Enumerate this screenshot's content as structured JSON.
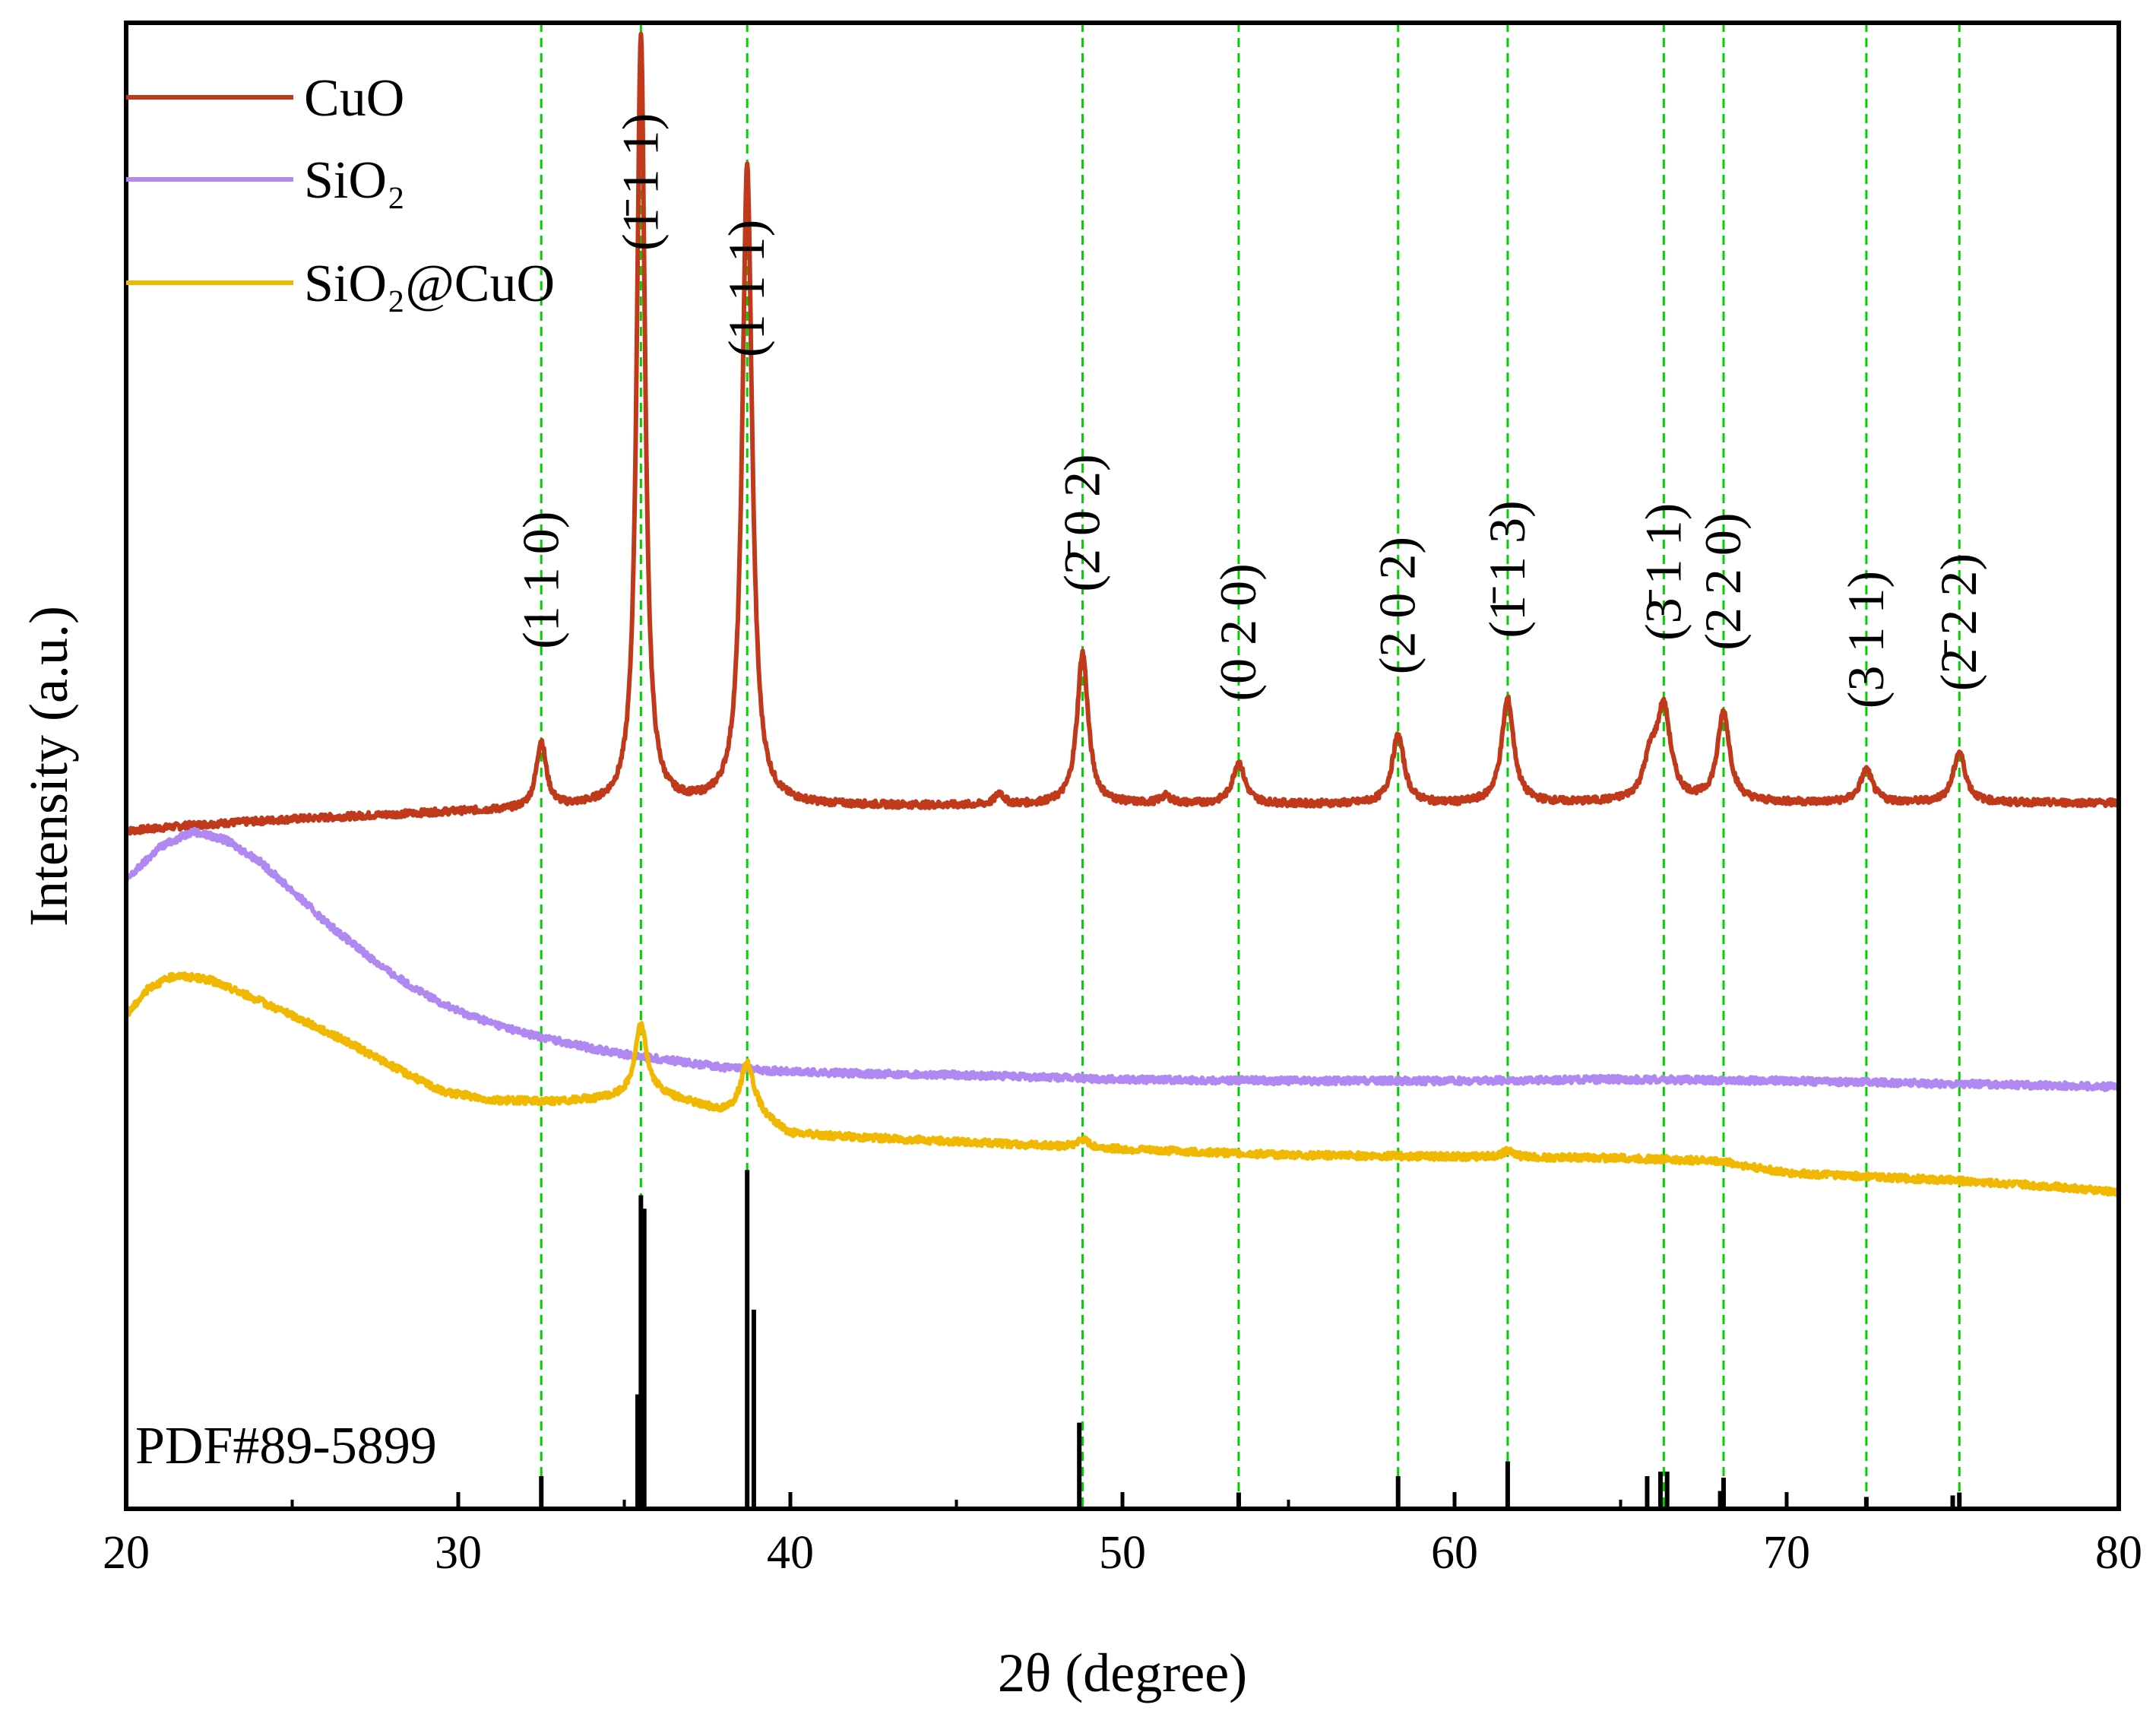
{
  "chart_data": {
    "type": "line",
    "title": "",
    "xlabel": "2θ  (degree)",
    "ylabel": "Intensity (a.u.)",
    "xlim": [
      20,
      80
    ],
    "ylim": [
      0,
      100
    ],
    "x_ticks": [
      20,
      30,
      40,
      50,
      60,
      70,
      80
    ],
    "x_tick_labels": [
      "20",
      "30",
      "40",
      "50",
      "60",
      "70",
      "80"
    ],
    "y_ticks_shown": false,
    "grid": false,
    "legend_position": "top-left",
    "legend": [
      {
        "name": "CuO",
        "color": "#c0391b"
      },
      {
        "name": "SiO₂",
        "color": "#b088f2"
      },
      {
        "name": "SiO₂@CuO",
        "color": "#f0b800"
      }
    ],
    "series": [
      {
        "name": "CuO",
        "color": "#c0391b",
        "baseline": [
          [
            20,
            45.6
          ],
          [
            22,
            46.0
          ],
          [
            25,
            46.4
          ],
          [
            30,
            46.9
          ],
          [
            32,
            47.0
          ],
          [
            34,
            47.2
          ],
          [
            37,
            47.3
          ],
          [
            40,
            47.3
          ],
          [
            45,
            47.3
          ],
          [
            50,
            47.4
          ],
          [
            55,
            47.4
          ],
          [
            60,
            47.4
          ],
          [
            65,
            47.5
          ],
          [
            70,
            47.5
          ],
          [
            75,
            47.5
          ],
          [
            80,
            47.5
          ]
        ],
        "peaks": [
          {
            "x": 32.5,
            "height": 4.5,
            "width": 0.18
          },
          {
            "x": 35.5,
            "height": 52.0,
            "width": 0.15
          },
          {
            "x": 38.7,
            "height": 43.0,
            "width": 0.18
          },
          {
            "x": 46.3,
            "height": 0.8,
            "width": 0.15
          },
          {
            "x": 48.8,
            "height": 10.2,
            "width": 0.2
          },
          {
            "x": 51.3,
            "height": 0.5,
            "width": 0.2
          },
          {
            "x": 53.5,
            "height": 2.8,
            "width": 0.22
          },
          {
            "x": 58.3,
            "height": 4.6,
            "width": 0.22
          },
          {
            "x": 61.6,
            "height": 7.0,
            "width": 0.22
          },
          {
            "x": 65.9,
            "height": 2.5,
            "width": 0.25
          },
          {
            "x": 66.3,
            "height": 6.0,
            "width": 0.25
          },
          {
            "x": 68.1,
            "height": 6.0,
            "width": 0.22
          },
          {
            "x": 72.4,
            "height": 2.2,
            "width": 0.22
          },
          {
            "x": 75.2,
            "height": 3.4,
            "width": 0.22
          }
        ]
      },
      {
        "name": "SiO₂",
        "color": "#b088f2",
        "baseline": [
          [
            20,
            42.3
          ],
          [
            21,
            44.5
          ],
          [
            22,
            45.6
          ],
          [
            23,
            45.0
          ],
          [
            24,
            43.6
          ],
          [
            25,
            41.6
          ],
          [
            26,
            39.5
          ],
          [
            27,
            37.7
          ],
          [
            28,
            36.0
          ],
          [
            29,
            34.6
          ],
          [
            30,
            33.5
          ],
          [
            31,
            32.7
          ],
          [
            32,
            32.0
          ],
          [
            33,
            31.5
          ],
          [
            34,
            31.0
          ],
          [
            35,
            30.6
          ],
          [
            36,
            30.3
          ],
          [
            37,
            30.0
          ],
          [
            38,
            29.7
          ],
          [
            40,
            29.4
          ],
          [
            42,
            29.3
          ],
          [
            45,
            29.2
          ],
          [
            50,
            28.9
          ],
          [
            55,
            28.8
          ],
          [
            60,
            28.8
          ],
          [
            65,
            28.9
          ],
          [
            70,
            28.8
          ],
          [
            75,
            28.6
          ],
          [
            80,
            28.4
          ]
        ],
        "peaks": []
      },
      {
        "name": "SiO₂@CuO",
        "color": "#f0b800",
        "baseline": [
          [
            20,
            33.2
          ],
          [
            20.7,
            35.1
          ],
          [
            21.5,
            35.9
          ],
          [
            22.5,
            35.6
          ],
          [
            23.5,
            34.7
          ],
          [
            25,
            33.2
          ],
          [
            26.5,
            31.6
          ],
          [
            28,
            29.8
          ],
          [
            29.5,
            28.1
          ],
          [
            31,
            27.5
          ],
          [
            33,
            27.4
          ],
          [
            34.5,
            27.6
          ],
          [
            36,
            27.8
          ],
          [
            37,
            27.3
          ],
          [
            38,
            26.6
          ],
          [
            39,
            26.4
          ],
          [
            40,
            25.2
          ],
          [
            42,
            25.0
          ],
          [
            45,
            24.7
          ],
          [
            48,
            24.4
          ],
          [
            50,
            24.2
          ],
          [
            55,
            23.8
          ],
          [
            60,
            23.7
          ],
          [
            65,
            23.6
          ],
          [
            68,
            23.4
          ],
          [
            70,
            22.6
          ],
          [
            75,
            22.1
          ],
          [
            78,
            21.7
          ],
          [
            80,
            21.3
          ]
        ],
        "peaks": [
          {
            "x": 35.5,
            "height": 4.8,
            "width": 0.22
          },
          {
            "x": 38.7,
            "height": 3.5,
            "width": 0.25
          },
          {
            "x": 48.8,
            "height": 0.5,
            "width": 0.22
          },
          {
            "x": 61.6,
            "height": 0.4,
            "width": 0.22
          }
        ]
      },
      {
        "name": "PDF#89-5899",
        "type": "stick",
        "color": "#000000",
        "x": [
          32.5,
          35.4,
          35.5,
          35.6,
          38.7,
          38.9,
          48.7,
          53.5,
          58.3,
          61.6,
          65.8,
          66.2,
          66.4,
          68.0,
          68.1,
          72.4,
          75.0,
          75.2
        ],
        "values": [
          2.2,
          7.7,
          21.1,
          20.2,
          22.8,
          13.4,
          5.8,
          1.1,
          2.2,
          3.2,
          2.2,
          2.5,
          2.5,
          1.2,
          2.1,
          0.8,
          0.9,
          1.1
        ]
      }
    ],
    "reference_lines": [
      {
        "x": 32.5,
        "label": "(1 1 0)"
      },
      {
        "x": 35.5,
        "label": "(1̄ 1 1)"
      },
      {
        "x": 38.7,
        "label": "(1 1 1)"
      },
      {
        "x": 48.8,
        "label": "(2̄ 0 2)"
      },
      {
        "x": 53.5,
        "label": "(0 2 0)"
      },
      {
        "x": 58.3,
        "label": "(2 0 2)"
      },
      {
        "x": 61.6,
        "label": "(1̄ 1 3)"
      },
      {
        "x": 66.3,
        "label": "(3̄ 1 1)"
      },
      {
        "x": 68.1,
        "label": "(2 2 0)"
      },
      {
        "x": 72.4,
        "label": "(3 1 1)"
      },
      {
        "x": 75.2,
        "label": "(2̄ 2 2)"
      }
    ],
    "reference_line_color": "#00d000",
    "annotations": [
      {
        "text": "PDF#89-5899",
        "position": "bottom-left"
      }
    ]
  }
}
